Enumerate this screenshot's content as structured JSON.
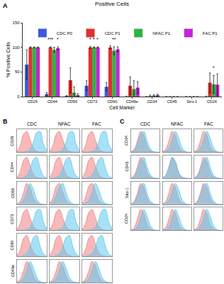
{
  "chart_data": {
    "type": "bar",
    "label": "A",
    "title": "Positive Cells",
    "x_label": "Cell Marker",
    "y_label": "% Positive Cells",
    "categories": [
      "CD29",
      "CD44",
      "CD56",
      "CD73",
      "CD90",
      "CD49e",
      "CD34",
      "CD45",
      "Stro-1",
      "CD24"
    ],
    "series": [
      {
        "name": "CDC P0",
        "color": "#3b5bdb",
        "values": [
          65,
          5,
          1,
          22,
          20,
          0,
          0,
          0,
          0,
          0
        ],
        "errors": [
          30,
          3,
          1,
          10,
          8,
          1,
          0,
          0,
          0,
          1
        ]
      },
      {
        "name": "CDC P1",
        "color": "#e03131",
        "values": [
          100,
          100,
          33,
          100,
          100,
          22,
          1,
          0,
          0,
          28
        ],
        "errors": [
          1,
          1,
          25,
          2,
          3,
          18,
          2,
          0,
          0,
          20
        ]
      },
      {
        "name": "NFAC P1",
        "color": "#2fb344",
        "values": [
          100,
          95,
          8,
          100,
          93,
          15,
          2,
          0,
          0,
          25
        ],
        "errors": [
          1,
          5,
          12,
          1,
          8,
          17,
          2,
          0,
          0,
          18
        ]
      },
      {
        "name": "FAC P1",
        "color": "#c026d3",
        "values": [
          100,
          98,
          3,
          100,
          96,
          18,
          3,
          0,
          0,
          24
        ],
        "errors": [
          1,
          3,
          3,
          1,
          5,
          12,
          2,
          0,
          0,
          22
        ]
      }
    ],
    "ylim": [
      0,
      150
    ],
    "yticks": [
      0,
      50,
      100,
      150
    ],
    "grid": false,
    "legend": "top right",
    "annotations": [
      {
        "category": "CD44",
        "series": "CDC P1",
        "text": "***",
        "y": 108
      },
      {
        "category": "CD44",
        "series": "FAC P1",
        "text": "*",
        "y": 108
      },
      {
        "category": "CD73",
        "series": "CDC P1",
        "text": "*",
        "y": 108
      },
      {
        "category": "CD73",
        "series": "NFAC P1",
        "text": "*",
        "y": 108
      },
      {
        "category": "CD73",
        "series": "FAC P1",
        "text": "*",
        "y": 108
      },
      {
        "category": "CD90",
        "series": "NFAC P1",
        "text": "**",
        "y": 108
      },
      {
        "category": "CD24",
        "series": "NFAC P1",
        "text": "*",
        "y": 50
      }
    ]
  },
  "panels": [
    {
      "type": "area",
      "label": "B",
      "columns": [
        "CDC",
        "NFAC",
        "FAC"
      ],
      "rows": [
        "CD29",
        "CD44",
        "CD56",
        "CD73",
        "CD90",
        "CD49e"
      ],
      "x": [
        0,
        1,
        2,
        3,
        4,
        5,
        6,
        7,
        8,
        9
      ],
      "xlim": [
        0,
        9
      ],
      "ylim": [
        0,
        110
      ],
      "tick_labels": false,
      "series": [
        {
          "color": "#f08080"
        },
        {
          "color": "#5ec8ee"
        }
      ],
      "cells": [
        [
          {
            "values": [
              [
                4,
                30,
                85,
                100,
                60,
                20,
                5,
                1,
                0,
                0
              ],
              [
                0,
                0,
                1,
                5,
                15,
                50,
                95,
                100,
                40,
                8
              ]
            ]
          },
          {
            "values": [
              [
                4,
                30,
                85,
                100,
                60,
                20,
                5,
                1,
                0,
                0
              ],
              [
                0,
                0,
                1,
                5,
                15,
                50,
                95,
                100,
                40,
                8
              ]
            ]
          },
          {
            "values": [
              [
                4,
                30,
                85,
                100,
                60,
                20,
                5,
                1,
                0,
                0
              ],
              [
                0,
                0,
                1,
                5,
                15,
                50,
                95,
                100,
                40,
                8
              ]
            ]
          }
        ],
        [
          {
            "values": [
              [
                4,
                30,
                85,
                100,
                60,
                20,
                5,
                1,
                0,
                0
              ],
              [
                0,
                1,
                5,
                15,
                45,
                90,
                100,
                50,
                12,
                2
              ]
            ]
          },
          {
            "values": [
              [
                4,
                30,
                85,
                100,
                60,
                20,
                5,
                1,
                0,
                0
              ],
              [
                0,
                1,
                5,
                15,
                45,
                90,
                100,
                50,
                12,
                2
              ]
            ]
          },
          {
            "values": [
              [
                4,
                30,
                85,
                100,
                60,
                20,
                5,
                1,
                0,
                0
              ],
              [
                0,
                1,
                5,
                15,
                45,
                90,
                100,
                50,
                12,
                2
              ]
            ]
          }
        ],
        [
          {
            "values": [
              [
                2,
                15,
                55,
                100,
                80,
                30,
                8,
                2,
                0,
                0
              ],
              [
                0,
                5,
                20,
                60,
                100,
                70,
                25,
                6,
                1,
                0
              ]
            ]
          },
          {
            "values": [
              [
                4,
                30,
                85,
                100,
                60,
                20,
                5,
                1,
                0,
                0
              ],
              [
                1,
                10,
                40,
                85,
                100,
                55,
                18,
                4,
                1,
                0
              ]
            ]
          },
          {
            "values": [
              [
                4,
                30,
                85,
                100,
                60,
                20,
                5,
                1,
                0,
                0
              ],
              [
                0,
                5,
                20,
                60,
                100,
                70,
                25,
                6,
                1,
                0
              ]
            ]
          }
        ],
        [
          {
            "values": [
              [
                4,
                30,
                85,
                100,
                60,
                20,
                5,
                1,
                0,
                0
              ],
              [
                0,
                0,
                1,
                5,
                15,
                50,
                95,
                100,
                40,
                8
              ]
            ]
          },
          {
            "values": [
              [
                4,
                30,
                85,
                100,
                60,
                20,
                5,
                1,
                0,
                0
              ],
              [
                0,
                0,
                1,
                5,
                15,
                50,
                95,
                100,
                40,
                8
              ]
            ]
          },
          {
            "values": [
              [
                4,
                30,
                85,
                100,
                60,
                20,
                5,
                1,
                0,
                0
              ],
              [
                0,
                0,
                1,
                5,
                15,
                50,
                95,
                100,
                40,
                8
              ]
            ]
          }
        ],
        [
          {
            "values": [
              [
                4,
                30,
                85,
                100,
                60,
                20,
                5,
                1,
                0,
                0
              ],
              [
                0,
                1,
                5,
                15,
                45,
                90,
                100,
                50,
                12,
                2
              ]
            ]
          },
          {
            "values": [
              [
                4,
                30,
                85,
                100,
                60,
                20,
                5,
                1,
                0,
                0
              ],
              [
                0,
                1,
                5,
                15,
                45,
                90,
                100,
                50,
                12,
                2
              ]
            ]
          },
          {
            "values": [
              [
                4,
                30,
                85,
                100,
                60,
                20,
                5,
                1,
                0,
                0
              ],
              [
                0,
                1,
                5,
                15,
                45,
                90,
                100,
                50,
                12,
                2
              ]
            ]
          }
        ],
        [
          {
            "values": [
              [
                2,
                15,
                55,
                100,
                80,
                30,
                8,
                2,
                0,
                0
              ],
              [
                0,
                5,
                20,
                60,
                100,
                70,
                25,
                6,
                1,
                0
              ]
            ]
          },
          {
            "values": [
              [
                2,
                15,
                55,
                100,
                80,
                30,
                8,
                2,
                0,
                0
              ],
              [
                0,
                5,
                20,
                60,
                100,
                70,
                25,
                6,
                1,
                0
              ]
            ]
          },
          {
            "values": [
              [
                2,
                15,
                55,
                100,
                80,
                30,
                8,
                2,
                0,
                0
              ],
              [
                0,
                5,
                20,
                60,
                100,
                70,
                25,
                6,
                1,
                0
              ]
            ]
          }
        ]
      ]
    },
    {
      "type": "area",
      "label": "C",
      "columns": [
        "CDC",
        "NFAC",
        "FAC"
      ],
      "rows": [
        "CD34",
        "CD45",
        "Stro-1",
        "CD24"
      ],
      "x": [
        0,
        1,
        2,
        3,
        4,
        5,
        6,
        7,
        8,
        9
      ],
      "xlim": [
        0,
        9
      ],
      "ylim": [
        0,
        110
      ],
      "tick_labels": false,
      "series": [
        {
          "color": "#f08080"
        },
        {
          "color": "#5ec8ee"
        }
      ],
      "cells": [
        [
          {
            "values": [
              [
                2,
                15,
                55,
                100,
                80,
                30,
                8,
                2,
                0,
                0
              ],
              [
                1,
                10,
                40,
                85,
                100,
                55,
                18,
                4,
                1,
                0
              ]
            ]
          },
          {
            "values": [
              [
                2,
                15,
                55,
                100,
                80,
                30,
                8,
                2,
                0,
                0
              ],
              [
                0,
                5,
                20,
                60,
                100,
                70,
                25,
                6,
                1,
                0
              ]
            ]
          },
          {
            "values": [
              [
                2,
                15,
                55,
                100,
                80,
                30,
                8,
                2,
                0,
                0
              ],
              [
                0,
                5,
                20,
                60,
                100,
                70,
                25,
                6,
                1,
                0
              ]
            ]
          }
        ],
        [
          {
            "values": [
              [
                2,
                15,
                55,
                100,
                80,
                30,
                8,
                2,
                0,
                0
              ],
              [
                1,
                10,
                40,
                85,
                100,
                55,
                18,
                4,
                1,
                0
              ]
            ]
          },
          {
            "values": [
              [
                2,
                15,
                55,
                100,
                80,
                30,
                8,
                2,
                0,
                0
              ],
              [
                2,
                15,
                55,
                100,
                80,
                30,
                8,
                2,
                0,
                0
              ]
            ]
          },
          {
            "values": [
              [
                2,
                15,
                55,
                100,
                80,
                30,
                8,
                2,
                0,
                0
              ],
              [
                1,
                10,
                40,
                85,
                100,
                55,
                18,
                4,
                1,
                0
              ]
            ]
          }
        ],
        [
          {
            "values": [
              [
                2,
                15,
                55,
                100,
                80,
                30,
                8,
                2,
                0,
                0
              ],
              [
                1,
                10,
                40,
                85,
                100,
                55,
                18,
                4,
                1,
                0
              ]
            ]
          },
          {
            "values": [
              [
                2,
                15,
                55,
                100,
                80,
                30,
                8,
                2,
                0,
                0
              ],
              [
                0,
                5,
                20,
                60,
                100,
                70,
                25,
                6,
                1,
                0
              ]
            ]
          },
          {
            "values": [
              [
                2,
                15,
                55,
                100,
                80,
                30,
                8,
                2,
                0,
                0
              ],
              [
                1,
                10,
                40,
                85,
                100,
                55,
                18,
                4,
                1,
                0
              ]
            ]
          }
        ],
        [
          {
            "values": [
              [
                2,
                15,
                55,
                100,
                80,
                30,
                8,
                2,
                0,
                0
              ],
              [
                0,
                5,
                20,
                60,
                100,
                70,
                25,
                6,
                1,
                0
              ]
            ]
          },
          {
            "values": [
              [
                2,
                15,
                55,
                100,
                80,
                30,
                8,
                2,
                0,
                0
              ],
              [
                0,
                5,
                20,
                60,
                100,
                70,
                25,
                6,
                1,
                0
              ]
            ]
          },
          {
            "values": [
              [
                2,
                15,
                55,
                100,
                80,
                30,
                8,
                2,
                0,
                0
              ],
              [
                0,
                5,
                20,
                60,
                100,
                70,
                25,
                6,
                1,
                0
              ]
            ]
          }
        ]
      ]
    }
  ]
}
